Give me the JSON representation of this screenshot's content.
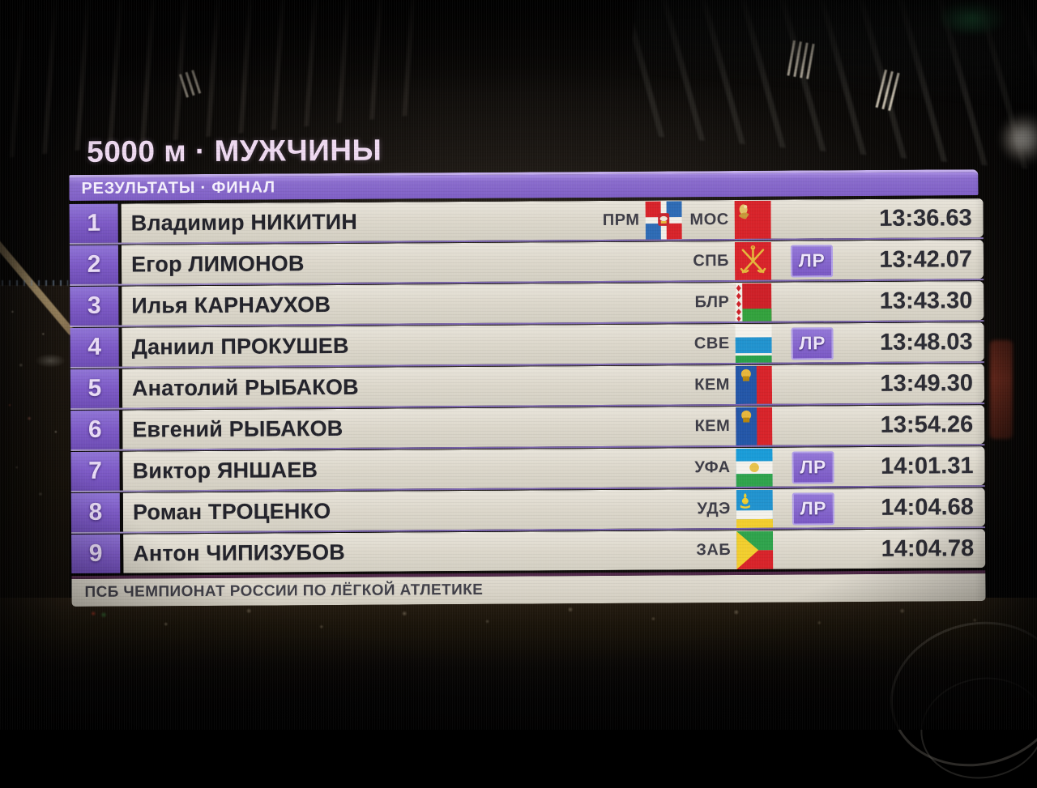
{
  "event": {
    "title": "5000 м · МУЖЧИНЫ",
    "subtitle": "РЕЗУЛЬТАТЫ · ФИНАЛ",
    "footer": "ПСБ ЧЕМПИОНАТ РОССИИ ПО ЛЁГКОЙ АТЛЕТИКЕ"
  },
  "colors": {
    "accent_purple": "#8468c8",
    "rank_cell_purple": "#7d5ac6",
    "record_badge_purple": "#7a58c4",
    "row_background": "#dedacf",
    "title_pink": "#efdaf1"
  },
  "record_badge_label": "ЛР",
  "results": [
    {
      "rank": "1",
      "name": "Владимир НИКИТИН",
      "regions": [
        {
          "code": "ПРМ",
          "flag": "perm-krai-flag"
        },
        {
          "code": "МОС",
          "flag": "moscow-oblast-flag"
        }
      ],
      "badge": "",
      "time": "13:36.63"
    },
    {
      "rank": "2",
      "name": "Егор ЛИМОНОВ",
      "regions": [
        {
          "code": "СПБ",
          "flag": "saint-petersburg-flag"
        }
      ],
      "badge": "ЛР",
      "time": "13:42.07"
    },
    {
      "rank": "3",
      "name": "Илья КАРНАУХОВ",
      "regions": [
        {
          "code": "БЛР",
          "flag": "belarus-flag"
        }
      ],
      "badge": "",
      "time": "13:43.30"
    },
    {
      "rank": "4",
      "name": "Даниил ПРОКУШЕВ",
      "regions": [
        {
          "code": "СВЕ",
          "flag": "sverdlovsk-oblast-flag"
        }
      ],
      "badge": "ЛР",
      "time": "13:48.03"
    },
    {
      "rank": "5",
      "name": "Анатолий РЫБАКОВ",
      "regions": [
        {
          "code": "КЕМ",
          "flag": "kemerovo-oblast-flag"
        }
      ],
      "badge": "",
      "time": "13:49.30"
    },
    {
      "rank": "6",
      "name": "Евгений РЫБАКОВ",
      "regions": [
        {
          "code": "КЕМ",
          "flag": "kemerovo-oblast-flag"
        }
      ],
      "badge": "",
      "time": "13:54.26"
    },
    {
      "rank": "7",
      "name": "Виктор ЯНШАЕВ",
      "regions": [
        {
          "code": "УФА",
          "flag": "bashkortostan-flag"
        }
      ],
      "badge": "ЛР",
      "time": "14:01.31"
    },
    {
      "rank": "8",
      "name": "Роман ТРОЦЕНКО",
      "regions": [
        {
          "code": "УДЭ",
          "flag": "buryatia-flag"
        }
      ],
      "badge": "ЛР",
      "time": "14:04.68"
    },
    {
      "rank": "9",
      "name": "Антон ЧИПИЗУБОВ",
      "regions": [
        {
          "code": "ЗАБ",
          "flag": "zabaykalsky-krai-flag"
        }
      ],
      "badge": "",
      "time": "14:04.78"
    }
  ]
}
